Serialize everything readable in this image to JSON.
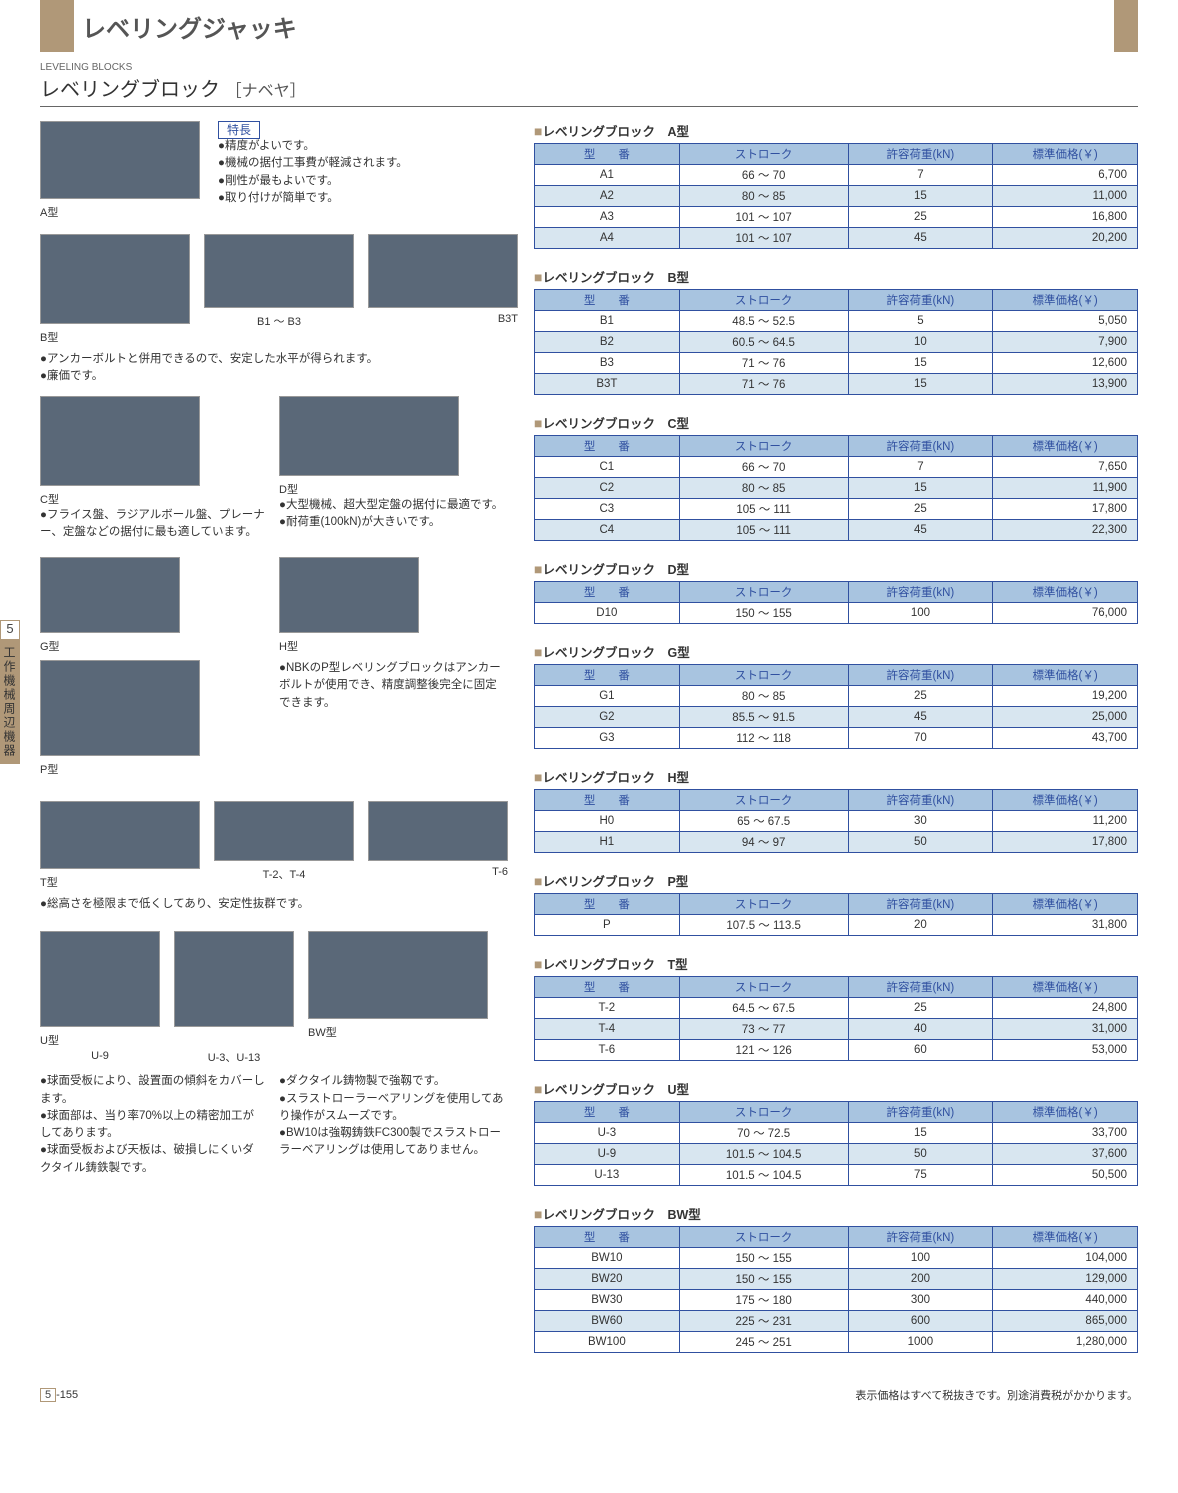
{
  "header": {
    "main_title": "レベリングジャッキ",
    "subtitle_en": "LEVELING BLOCKS",
    "subtitle_jp": "レベリングブロック",
    "subtitle_bracket": "［ナベヤ］"
  },
  "features": {
    "label": "特長",
    "items": [
      "●精度がよいです。",
      "●機械の据付工事費が軽減されます。",
      "●剛性が最もよいです。",
      "●取り付けが簡単です。"
    ]
  },
  "descriptions": {
    "b_desc": "●アンカーボルトと併用できるので、安定した水平が得られます。\n●廉価です。",
    "c_desc": "●フライス盤、ラジアルボール盤、プレーナー、定盤などの据付に最も適しています。",
    "d_desc": "●大型機械、超大型定盤の据付に最適です。\n●耐荷重(100kN)が大きいです。",
    "h_desc": "●NBKのP型レベリングブロックはアンカーボルトが使用でき、精度調整後完全に固定できます。",
    "t_desc": "●総高さを極限まで低くしてあり、安定性抜群です。",
    "u_desc": "●球面受板により、設置面の傾斜をカバーします。\n●球面部は、当り率70%以上の精密加工がしてあります。\n●球面受板および天板は、破損しにくいダクタイル鋳鉄製です。",
    "bw_desc": "●ダクタイル鋳物製で強靱です。\n●スラストローラーベアリングを使用してあり操作がスムーズです。\n●BW10は強靱鋳鉄FC300製でスラストローラーベアリングは使用してありません。"
  },
  "img_captions": {
    "a": "A型",
    "b": "B型",
    "b13": "B1 ～ B3",
    "b3t": "B3T",
    "c": "C型",
    "d": "D型",
    "g": "G型",
    "h": "H型",
    "p": "P型",
    "t": "T型",
    "t24": "T-2、T-4",
    "t6": "T-6",
    "u": "U型",
    "u9": "U-9",
    "u313": "U-3、U-13",
    "bw": "BW型"
  },
  "tables": {
    "headers": [
      "型　　番",
      "ストローク",
      "許容荷重(kN)",
      "標準価格(￥)"
    ],
    "a": {
      "title": "レベリングブロック　A型",
      "rows": [
        {
          "m": "A1",
          "s": "66 ～ 70",
          "l": "7",
          "p": "6,700"
        },
        {
          "m": "A2",
          "s": "80 ～ 85",
          "l": "15",
          "p": "11,000",
          "shade": true
        },
        {
          "m": "A3",
          "s": "101 ～ 107",
          "l": "25",
          "p": "16,800"
        },
        {
          "m": "A4",
          "s": "101 ～ 107",
          "l": "45",
          "p": "20,200",
          "shade": true
        }
      ]
    },
    "b": {
      "title": "レベリングブロック　B型",
      "rows": [
        {
          "m": "B1",
          "s": "48.5 ～ 52.5",
          "l": "5",
          "p": "5,050"
        },
        {
          "m": "B2",
          "s": "60.5 ～ 64.5",
          "l": "10",
          "p": "7,900",
          "shade": true
        },
        {
          "m": "B3",
          "s": "71 ～ 76",
          "l": "15",
          "p": "12,600"
        },
        {
          "m": "B3T",
          "s": "71 ～ 76",
          "l": "15",
          "p": "13,900",
          "shade": true
        }
      ]
    },
    "c": {
      "title": "レベリングブロック　C型",
      "rows": [
        {
          "m": "C1",
          "s": "66 ～ 70",
          "l": "7",
          "p": "7,650"
        },
        {
          "m": "C2",
          "s": "80 ～ 85",
          "l": "15",
          "p": "11,900",
          "shade": true
        },
        {
          "m": "C3",
          "s": "105 ～ 111",
          "l": "25",
          "p": "17,800"
        },
        {
          "m": "C4",
          "s": "105 ～ 111",
          "l": "45",
          "p": "22,300",
          "shade": true
        }
      ]
    },
    "d": {
      "title": "レベリングブロック　D型",
      "rows": [
        {
          "m": "D10",
          "s": "150 ～ 155",
          "l": "100",
          "p": "76,000"
        }
      ]
    },
    "g": {
      "title": "レベリングブロック　G型",
      "rows": [
        {
          "m": "G1",
          "s": "80 ～ 85",
          "l": "25",
          "p": "19,200"
        },
        {
          "m": "G2",
          "s": "85.5 ～ 91.5",
          "l": "45",
          "p": "25,000",
          "shade": true
        },
        {
          "m": "G3",
          "s": "112 ～ 118",
          "l": "70",
          "p": "43,700"
        }
      ]
    },
    "h": {
      "title": "レベリングブロック　H型",
      "rows": [
        {
          "m": "H0",
          "s": "65 ～ 67.5",
          "l": "30",
          "p": "11,200"
        },
        {
          "m": "H1",
          "s": "94 ～ 97",
          "l": "50",
          "p": "17,800",
          "shade": true
        }
      ]
    },
    "p": {
      "title": "レベリングブロック　P型",
      "rows": [
        {
          "m": "P",
          "s": "107.5 ～ 113.5",
          "l": "20",
          "p": "31,800"
        }
      ]
    },
    "t": {
      "title": "レベリングブロック　T型",
      "rows": [
        {
          "m": "T-2",
          "s": "64.5 ～ 67.5",
          "l": "25",
          "p": "24,800"
        },
        {
          "m": "T-4",
          "s": "73 ～ 77",
          "l": "40",
          "p": "31,000",
          "shade": true
        },
        {
          "m": "T-6",
          "s": "121 ～ 126",
          "l": "60",
          "p": "53,000"
        }
      ]
    },
    "u": {
      "title": "レベリングブロック　U型",
      "rows": [
        {
          "m": "U-3",
          "s": "70 ～ 72.5",
          "l": "15",
          "p": "33,700"
        },
        {
          "m": "U-9",
          "s": "101.5 ～ 104.5",
          "l": "50",
          "p": "37,600",
          "shade": true
        },
        {
          "m": "U-13",
          "s": "101.5 ～ 104.5",
          "l": "75",
          "p": "50,500"
        }
      ]
    },
    "bw": {
      "title": "レベリングブロック　BW型",
      "rows": [
        {
          "m": "BW10",
          "s": "150 ～ 155",
          "l": "100",
          "p": "104,000"
        },
        {
          "m": "BW20",
          "s": "150 ～ 155",
          "l": "200",
          "p": "129,000",
          "shade": true
        },
        {
          "m": "BW30",
          "s": "175 ～ 180",
          "l": "300",
          "p": "440,000"
        },
        {
          "m": "BW60",
          "s": "225 ～ 231",
          "l": "600",
          "p": "865,000",
          "shade": true
        },
        {
          "m": "BW100",
          "s": "245 ～ 251",
          "l": "1000",
          "p": "1,280,000"
        }
      ]
    }
  },
  "side_tab": {
    "num": "5",
    "label": "工作機械周辺機器"
  },
  "footer": {
    "page_section": "5",
    "page_num": "-155",
    "note": "表示価格はすべて税抜きです。別途消費税がかかります。"
  }
}
